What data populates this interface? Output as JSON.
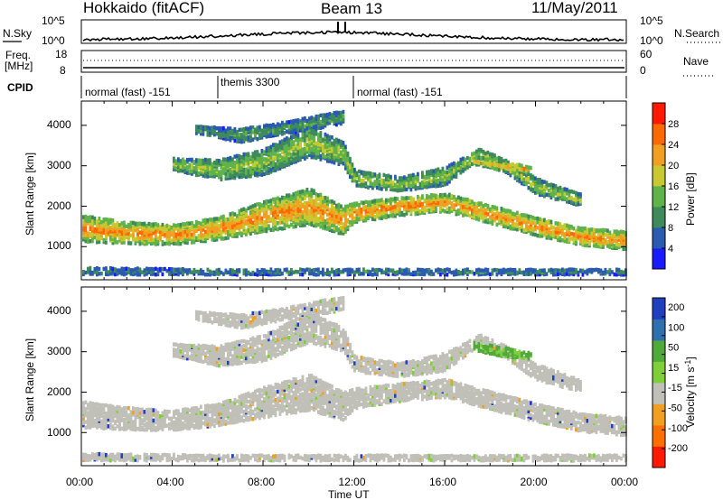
{
  "header": {
    "station": "Hokkaido (fitACF)",
    "beam": "Beam 13",
    "date": "11/May/2011"
  },
  "noise_panel": {
    "left_label": "N.Sky",
    "right_label": "N.Search",
    "left_ticks": [
      "10^5",
      "10^0"
    ],
    "right_ticks": [
      "10^5",
      "10^0"
    ]
  },
  "freq_panel": {
    "left_label_1": "Freq.",
    "left_label_2": "[MHz]",
    "right_label": "Nave",
    "left_ticks": [
      "18",
      "8"
    ],
    "right_ticks": [
      "60",
      "0"
    ]
  },
  "cpid": {
    "label": "CPID",
    "segments": [
      {
        "name": "normal (fast) -151",
        "start_hour": 0,
        "end_hour": 6
      },
      {
        "name": "themis 3300",
        "start_hour": 6,
        "end_hour": 12
      },
      {
        "name": "normal (fast) -151",
        "start_hour": 12,
        "end_hour": 24
      }
    ]
  },
  "power_panel": {
    "ylabel": "Slant Range [km]",
    "yticks": [
      "1000",
      "2000",
      "3000",
      "4000"
    ],
    "colorbar_label": "Power [dB]",
    "colorbar_ticks": [
      "4",
      "8",
      "12",
      "16",
      "20",
      "24",
      "28"
    ],
    "colors": [
      "#1a1aff",
      "#2a5bb0",
      "#3f8a5a",
      "#5fb34a",
      "#c8c830",
      "#f0a020",
      "#ff6a00",
      "#ff1a00"
    ]
  },
  "velocity_panel": {
    "ylabel": "Slant Range [km]",
    "yticks": [
      "1000",
      "2000",
      "3000",
      "4000"
    ],
    "colorbar_label": "Velocity [m s",
    "colorbar_unit_sup": "-1",
    "colorbar_unit_end": "]",
    "colorbar_ticks": [
      "200",
      "100",
      "50",
      "15",
      "-15",
      "-50",
      "-100",
      "-200"
    ],
    "colors": [
      "#1f3fbf",
      "#2e6fae",
      "#4faa3a",
      "#7fcf3a",
      "#c0c0b8",
      "#f0a020",
      "#ff7000",
      "#ff1a00"
    ]
  },
  "xaxis": {
    "label": "Time UT",
    "ticks": [
      "00:00",
      "04:00",
      "08:00",
      "12:00",
      "16:00",
      "20:00",
      "00:00"
    ]
  },
  "chart_data": {
    "type": "heatmap",
    "title": "Hokkaido (fitACF)",
    "subtitle": "Beam 13",
    "xlabel": "Time UT",
    "ylabel": "Slant Range [km]",
    "xlim_hours": [
      0,
      24
    ],
    "ylim_km": [
      180,
      4600
    ],
    "power_clim_db": [
      0,
      32
    ],
    "velocity_clim_ms": [
      -250,
      250
    ],
    "echo_bands": [
      {
        "name": "main",
        "points": [
          [
            0,
            1450,
            650
          ],
          [
            2,
            1350,
            550
          ],
          [
            4,
            1300,
            500
          ],
          [
            6,
            1450,
            550
          ],
          [
            8,
            1750,
            750
          ],
          [
            10,
            2000,
            900
          ],
          [
            11.5,
            1650,
            700
          ],
          [
            12,
            1850,
            500
          ],
          [
            14,
            2000,
            450
          ],
          [
            16,
            2100,
            450
          ],
          [
            18,
            1800,
            450
          ],
          [
            20,
            1500,
            450
          ],
          [
            22,
            1250,
            450
          ],
          [
            24,
            1150,
            450
          ]
        ],
        "power": 25,
        "velocity": 0
      },
      {
        "name": "upper",
        "points": [
          [
            4,
            3050,
            300
          ],
          [
            6,
            2900,
            500
          ],
          [
            8,
            3100,
            650
          ],
          [
            10,
            3600,
            750
          ],
          [
            11.5,
            3300,
            600
          ],
          [
            12,
            2700,
            400
          ],
          [
            14,
            2550,
            350
          ],
          [
            16,
            2750,
            450
          ],
          [
            17.5,
            3300,
            250
          ],
          [
            18.5,
            3050,
            300
          ],
          [
            20,
            2500,
            400
          ],
          [
            22,
            2150,
            300
          ]
        ],
        "power": 17,
        "velocity": 0
      },
      {
        "name": "far",
        "points": [
          [
            5,
            3900,
            200
          ],
          [
            7,
            3750,
            350
          ],
          [
            9,
            3950,
            300
          ],
          [
            11,
            4150,
            350
          ],
          [
            11.5,
            4200,
            300
          ]
        ],
        "power": 12,
        "velocity": 0
      },
      {
        "name": "green-patch",
        "points": [
          [
            17.2,
            3150,
            200
          ],
          [
            18.5,
            3000,
            250
          ],
          [
            19.8,
            2900,
            150
          ]
        ],
        "power": 22,
        "velocity": 70
      },
      {
        "name": "near",
        "points": [
          [
            0,
            400,
            180
          ],
          [
            6,
            380,
            150
          ],
          [
            12,
            380,
            150
          ],
          [
            18,
            380,
            150
          ],
          [
            24,
            380,
            150
          ]
        ],
        "power": 10,
        "velocity": 0
      }
    ]
  }
}
